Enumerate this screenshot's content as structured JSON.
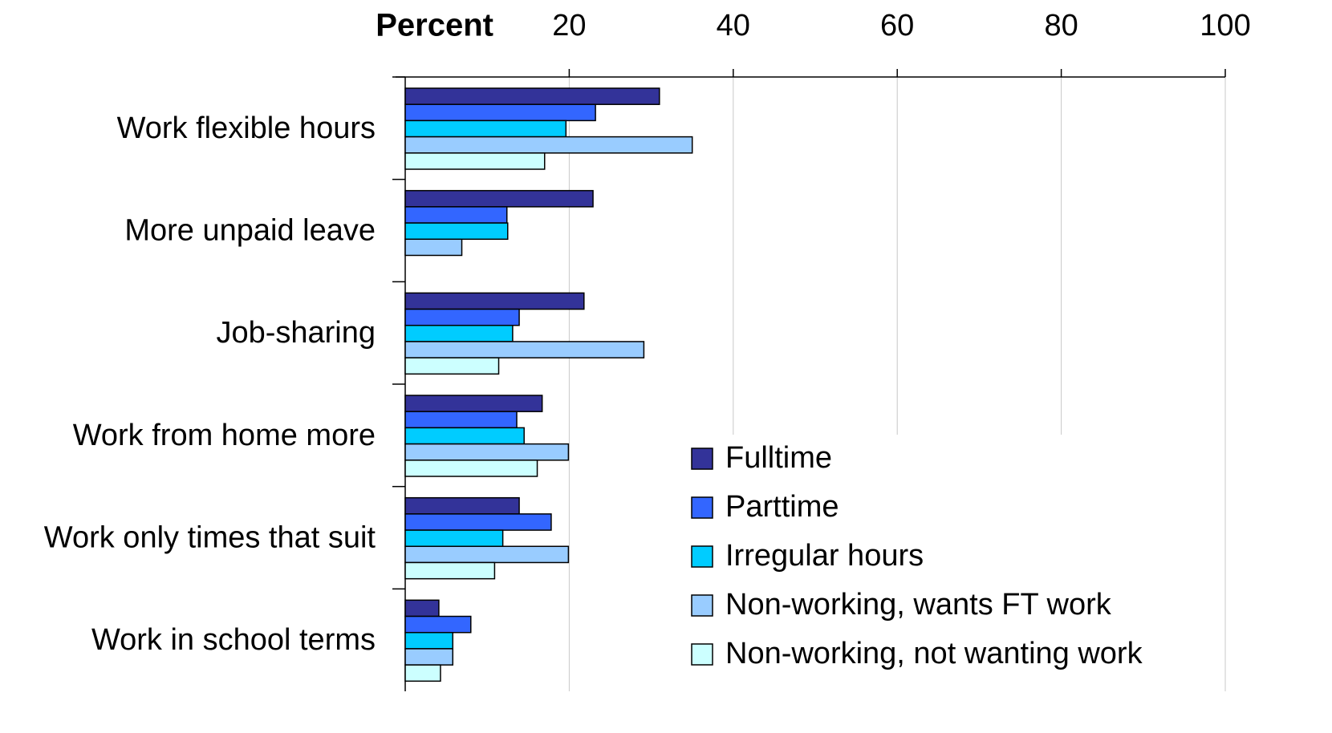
{
  "chart_data": {
    "type": "hbar",
    "x_label": "Percent",
    "categories": [
      "Work flexible hours",
      "More unpaid leave",
      "Job-sharing",
      "Work from home more",
      "Work only times that suit",
      "Work in school terms"
    ],
    "series": [
      {
        "name": "Fulltime",
        "color": "#333399",
        "values": [
          31.0,
          22.9,
          21.8,
          16.7,
          13.9,
          4.1
        ]
      },
      {
        "name": "Parttime",
        "color": "#3366ff",
        "values": [
          23.2,
          12.4,
          13.9,
          13.6,
          17.8,
          8.0
        ]
      },
      {
        "name": "Irregular hours",
        "color": "#00ccff",
        "values": [
          19.6,
          12.5,
          13.1,
          14.5,
          11.9,
          5.8
        ]
      },
      {
        "name": "Non-working, wants FT work",
        "color": "#99ccff",
        "values": [
          35.0,
          6.9,
          29.1,
          19.9,
          19.9,
          5.8
        ]
      },
      {
        "name": "Non-working, not wanting work",
        "color": "#ccffff",
        "values": [
          17.0,
          null,
          11.4,
          16.1,
          10.9,
          4.3
        ]
      }
    ],
    "xlim": [
      0,
      100
    ],
    "xticks": [
      20,
      40,
      60,
      80,
      100
    ],
    "grid": true,
    "legend": "lower right"
  }
}
